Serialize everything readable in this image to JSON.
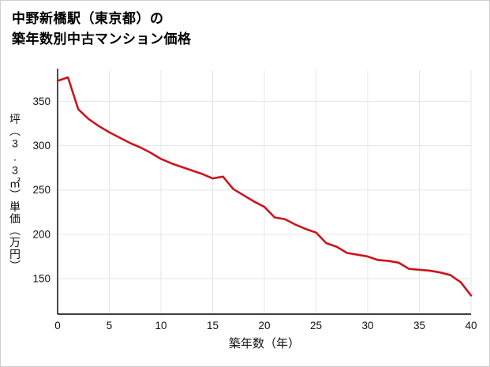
{
  "chart_data": {
    "type": "line",
    "title": "中野新橋駅（東京都）の築年数別中古マンション価格",
    "title_line1": "中野新橋駅（東京都）の",
    "title_line2": "築年数別中古マンション価格",
    "xlabel": "築年数（年）",
    "ylabel": "坪（3.3㎡）単価（万円）",
    "x": [
      0,
      1,
      2,
      3,
      4,
      5,
      6,
      7,
      8,
      9,
      10,
      11,
      12,
      13,
      14,
      15,
      16,
      17,
      18,
      19,
      20,
      21,
      22,
      23,
      24,
      25,
      26,
      27,
      28,
      29,
      30,
      31,
      32,
      33,
      34,
      35,
      36,
      37,
      38,
      39,
      40
    ],
    "values": [
      373,
      377,
      341,
      330,
      322,
      315,
      309,
      303,
      298,
      292,
      285,
      280,
      276,
      272,
      268,
      263,
      265,
      251,
      244,
      237,
      231,
      219,
      217,
      211,
      206,
      202,
      190,
      186,
      179,
      177,
      175,
      171,
      170,
      168,
      161,
      160,
      159,
      157,
      154,
      146,
      131
    ],
    "xlim": [
      0,
      40
    ],
    "ylim": [
      110,
      385
    ],
    "xticks": [
      0,
      5,
      10,
      15,
      20,
      25,
      30,
      35,
      40
    ],
    "yticks": [
      150,
      200,
      250,
      300,
      350
    ],
    "grid": true,
    "legend": "none",
    "line_color": "#c9161d",
    "grid_color": "#e6e6e6",
    "axis_color": "#000000",
    "text_color": "#111111"
  }
}
